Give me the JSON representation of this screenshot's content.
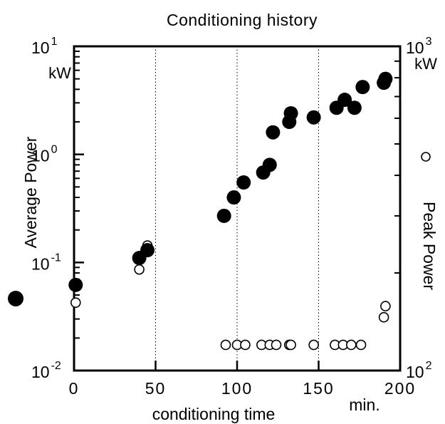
{
  "chart_data": {
    "type": "scatter",
    "title": "Conditioning history",
    "xlabel": "conditioning time",
    "x_unit": "min.",
    "xlim": [
      0,
      200
    ],
    "x_ticks": [
      0,
      50,
      100,
      150,
      200
    ],
    "x_tick_labels": [
      "0",
      "50",
      "100",
      "150",
      "200"
    ],
    "grid_x": [
      50,
      100,
      150
    ],
    "left_axis": {
      "label": "Average Power",
      "unit": "kW",
      "scale": "log",
      "lim": [
        0.01,
        10
      ],
      "ticks": [
        {
          "value": 10,
          "base": "10",
          "exp": "1"
        },
        {
          "value": 1,
          "base": "10",
          "exp": "0"
        },
        {
          "value": 0.1,
          "base": "10",
          "exp": "-1"
        },
        {
          "value": 0.01,
          "base": "10",
          "exp": "-2"
        }
      ],
      "marker": "filled circle"
    },
    "right_axis": {
      "label": "Peak Power",
      "unit": "kW",
      "scale": "log",
      "lim": [
        100,
        1000
      ],
      "ticks": [
        {
          "value": 1000,
          "base": "10",
          "exp": "3"
        },
        {
          "value": 100,
          "base": "10",
          "exp": "2"
        }
      ],
      "marker": "open circle"
    },
    "series": [
      {
        "axis": "left",
        "style": "filled",
        "points": [
          [
            1,
            0.062
          ],
          [
            40,
            0.11
          ],
          [
            45,
            0.13
          ],
          [
            92,
            0.27
          ],
          [
            98,
            0.4
          ],
          [
            104,
            0.55
          ],
          [
            116,
            0.68
          ],
          [
            120,
            0.8
          ],
          [
            122,
            1.6
          ],
          [
            132,
            2.0
          ],
          [
            133,
            2.4
          ],
          [
            147,
            2.2
          ],
          [
            161,
            2.7
          ],
          [
            166,
            3.2
          ],
          [
            172,
            2.7
          ],
          [
            177,
            4.2
          ],
          [
            190,
            4.6
          ],
          [
            191,
            5.0
          ]
        ]
      },
      {
        "axis": "right",
        "style": "open",
        "points": [
          [
            1,
            162
          ],
          [
            40,
            205
          ],
          [
            45,
            243
          ],
          [
            93,
            120
          ],
          [
            100,
            120
          ],
          [
            105,
            120
          ],
          [
            115,
            120
          ],
          [
            120,
            120
          ],
          [
            124,
            120
          ],
          [
            132,
            120
          ],
          [
            133,
            120
          ],
          [
            147,
            120
          ],
          [
            160,
            120
          ],
          [
            165,
            120
          ],
          [
            170,
            120
          ],
          [
            176,
            120
          ],
          [
            190,
            146
          ],
          [
            191,
            158
          ]
        ]
      }
    ]
  }
}
